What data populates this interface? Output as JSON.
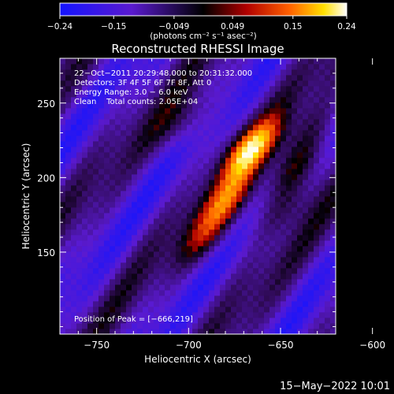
{
  "chart_data": {
    "type": "heatmap",
    "title": "Reconstructed RHESSI Image",
    "xlabel": "Heliocentric X (arcsec)",
    "ylabel": "Heliocentric Y (arcsec)",
    "xlim": [
      -770,
      -620
    ],
    "ylim": [
      95,
      280
    ],
    "x_ticks": [
      -750,
      -700,
      -650,
      -600
    ],
    "y_ticks": [
      150,
      200,
      250
    ],
    "x_tick_labels": [
      "−750",
      "−700",
      "−650",
      "−600"
    ],
    "y_tick_labels": [
      "150",
      "200",
      "250"
    ],
    "colorbar": {
      "range": [
        -0.24,
        0.24
      ],
      "ticks": [
        -0.24,
        -0.15,
        -0.049,
        0.049,
        0.15,
        0.24
      ],
      "tick_labels": [
        "−0.24",
        "−0.15",
        "−0.049",
        "0.049",
        "0.15",
        "0.24"
      ],
      "unit_label": "(photons cm⁻² s⁻¹ asec⁻²)"
    },
    "annotations": [
      "22−Oct−2011 20:29:48.000 to 20:31:32.000",
      "Detectors: 3F 4F 5F 6F 7F 8F, Att 0",
      "Energy Range: 3.0 − 6.0 keV",
      "Clean    Total counts: 2.05E+04"
    ],
    "peak_label": "Position of Peak = [−666,219]",
    "peak": [
      -666,
      219
    ],
    "sources": [
      {
        "x": -666,
        "y": 219,
        "amp": 0.24
      },
      {
        "x": -678,
        "y": 185,
        "amp": 0.16
      },
      {
        "x": -690,
        "y": 160,
        "amp": 0.11
      },
      {
        "x": -641,
        "y": 207,
        "amp": 0.14
      },
      {
        "x": -648,
        "y": 180,
        "amp": 0.09
      },
      {
        "x": -703,
        "y": 238,
        "amp": 0.08
      },
      {
        "x": -632,
        "y": 232,
        "amp": 0.07
      }
    ]
  },
  "footer": {
    "date": "15−May−2022 10:01"
  },
  "colors": {
    "background": "#000000",
    "text": "#ffffff",
    "negative": "#2020ff",
    "mid": "#000000",
    "positive_low": "#c00000",
    "positive_high": "#ffffff"
  }
}
